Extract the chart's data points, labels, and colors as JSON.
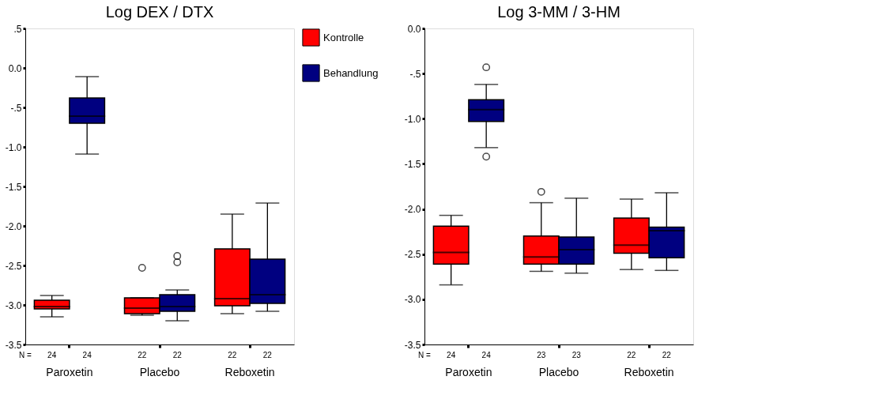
{
  "chart_data": [
    {
      "type": "box",
      "title": "Log DEX / DTX",
      "categories": [
        "Paroxetin",
        "Placebo",
        "Reboxetin"
      ],
      "ylim": [
        -3.5,
        0.5
      ],
      "yticks": [
        {
          "value": 0.5,
          "label": ".5"
        },
        "0.0",
        {
          "value": -0.5,
          "label": "-.5"
        },
        {
          "value": -1,
          "label": "-1.0"
        },
        {
          "value": -1.5,
          "label": "-1.5"
        },
        {
          "value": -2,
          "label": "-2.0"
        },
        {
          "value": -2.5,
          "label": "-2.5"
        },
        {
          "value": -3,
          "label": "-3.0"
        },
        {
          "value": -3.5,
          "label": "-3.5"
        }
      ],
      "grid": false,
      "legend": "right",
      "annotations": [
        "N =",
        "24",
        "24",
        "22",
        "22",
        "22",
        "22"
      ],
      "series": [
        {
          "name": "Kontrolle",
          "color": "#ff0000",
          "boxes": [
            {
              "low": -3.15,
              "q1": -3.05,
              "median": -3.02,
              "q3": -2.94,
              "high": -2.88
            },
            {
              "low": -3.13,
              "q1": -3.11,
              "median": -3.04,
              "q3": -2.91,
              "high": -2.91,
              "outliers": [
                -2.53
              ]
            },
            {
              "low": -3.11,
              "q1": -3.01,
              "median": -2.92,
              "q3": -2.29,
              "high": -1.85
            }
          ]
        },
        {
          "name": "Behandlung",
          "color": "#000080",
          "boxes": [
            {
              "low": -1.09,
              "q1": -0.7,
              "median": -0.61,
              "q3": -0.38,
              "high": -0.11
            },
            {
              "low": -3.2,
              "q1": -3.08,
              "median": -3.02,
              "q3": -2.87,
              "high": -2.81,
              "outliers": [
                -2.38,
                -2.46
              ]
            },
            {
              "low": -3.08,
              "q1": -2.98,
              "median": -2.87,
              "q3": -2.42,
              "high": -1.71
            }
          ]
        }
      ]
    },
    {
      "type": "box",
      "title": "Log 3-MM / 3-HM",
      "categories": [
        "Paroxetin",
        "Placebo",
        "Reboxetin"
      ],
      "ylim": [
        -3.5,
        0.0
      ],
      "yticks": [
        {
          "value": 0,
          "label": "0.0"
        },
        {
          "value": -0.5,
          "label": "-.5"
        },
        {
          "value": -1,
          "label": "-1.0"
        },
        {
          "value": -1.5,
          "label": "-1.5"
        },
        {
          "value": -2,
          "label": "-2.0"
        },
        {
          "value": -2.5,
          "label": "-2.5"
        },
        {
          "value": -3,
          "label": "-3.0"
        },
        {
          "value": -3.5,
          "label": "-3.5"
        }
      ],
      "grid": false,
      "annotations": [
        "N =",
        "24",
        "24",
        "23",
        "23",
        "22",
        "22"
      ],
      "series": [
        {
          "name": "Kontrolle",
          "color": "#ff0000",
          "boxes": [
            {
              "low": -2.84,
              "q1": -2.61,
              "median": -2.48,
              "q3": -2.19,
              "high": -2.07
            },
            {
              "low": -2.69,
              "q1": -2.61,
              "median": -2.53,
              "q3": -2.3,
              "high": -1.93,
              "outliers": [
                -1.81
              ]
            },
            {
              "low": -2.67,
              "q1": -2.49,
              "median": -2.4,
              "q3": -2.1,
              "high": -1.89
            }
          ]
        },
        {
          "name": "Behandlung",
          "color": "#000080",
          "boxes": [
            {
              "low": -1.32,
              "q1": -1.03,
              "median": -0.9,
              "q3": -0.79,
              "high": -0.62,
              "outliers": [
                -0.43,
                -1.42
              ]
            },
            {
              "low": -2.71,
              "q1": -2.61,
              "median": -2.45,
              "q3": -2.31,
              "high": -1.88
            },
            {
              "low": -2.68,
              "q1": -2.54,
              "median": -2.24,
              "q3": -2.2,
              "high": -1.82
            }
          ]
        }
      ]
    }
  ]
}
